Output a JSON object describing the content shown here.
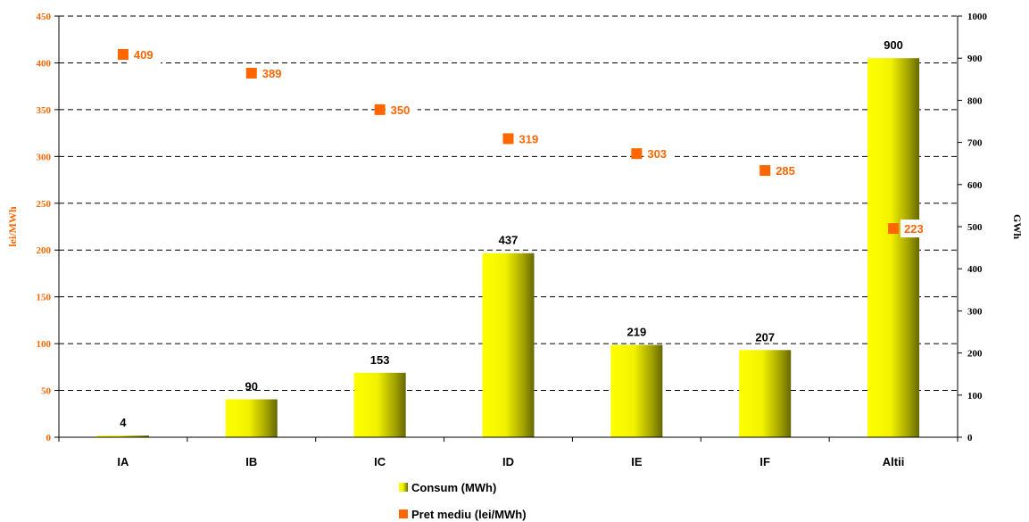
{
  "chart_data": {
    "type": "bar",
    "categories": [
      "IA",
      "IB",
      "IC",
      "ID",
      "IE",
      "IF",
      "Altii"
    ],
    "series": [
      {
        "name": "Consum (MWh)",
        "type": "bar",
        "axis": "right",
        "color": "#e6e600",
        "values": [
          4,
          90,
          153,
          437,
          219,
          207,
          900
        ]
      },
      {
        "name": "Pret mediu (lei/MWh)",
        "type": "scatter",
        "axis": "left",
        "color": "#ff6600",
        "values": [
          409,
          389,
          350,
          319,
          303,
          285,
          223
        ]
      }
    ],
    "ylabel": "lei/MWh",
    "ylabel_right": "GWh",
    "ylim": [
      0,
      450
    ],
    "ylim_right": [
      0,
      1000
    ],
    "yticks": [
      "0",
      "50",
      "100",
      "150",
      "200",
      "250",
      "300",
      "350",
      "400",
      "450"
    ],
    "yticks_right": [
      "0",
      "100",
      "200",
      "300",
      "400",
      "500",
      "600",
      "700",
      "800",
      "900",
      "1000"
    ],
    "grid": "dashed horizontal",
    "legend_position": "bottom"
  }
}
